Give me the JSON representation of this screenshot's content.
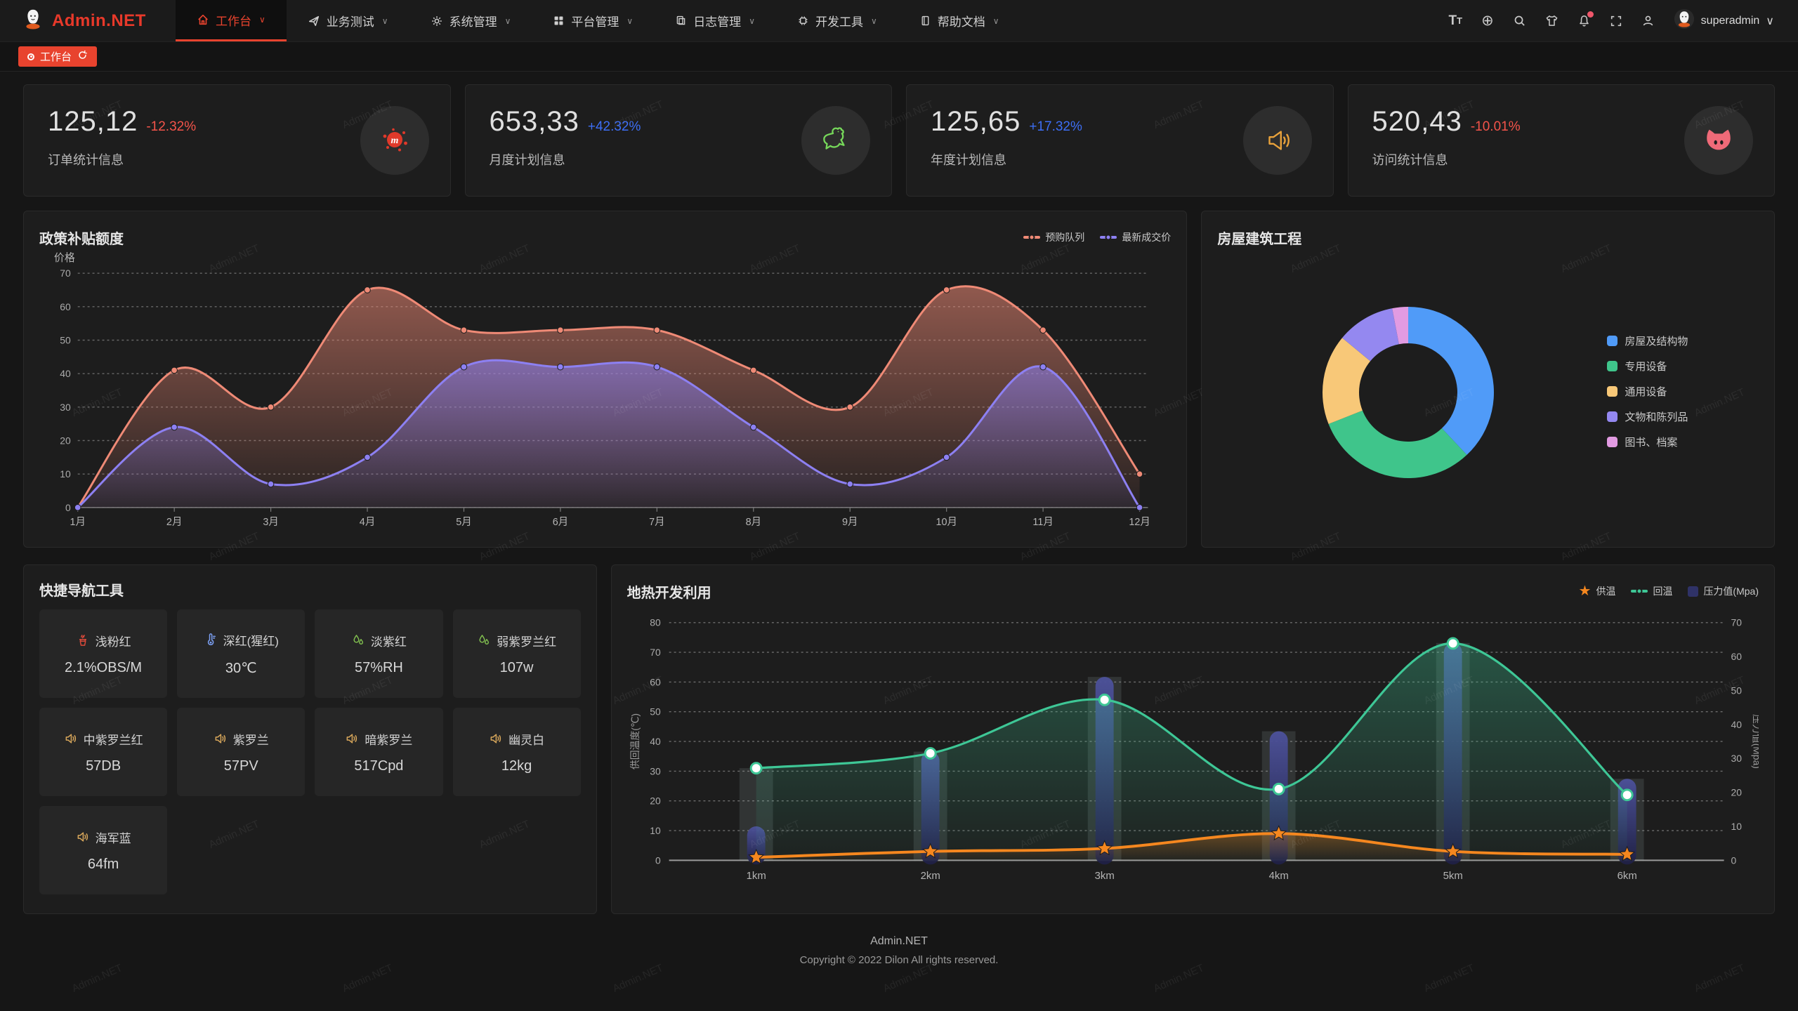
{
  "app": {
    "brand": "Admin.NET",
    "footer_line1": "Admin.NET",
    "footer_line2": "Copyright © 2022 Dilon All rights reserved."
  },
  "navbar": {
    "menu": [
      {
        "label": "工作台",
        "icon": "home-icon",
        "active": true
      },
      {
        "label": "业务测试",
        "icon": "send-icon",
        "active": false
      },
      {
        "label": "系统管理",
        "icon": "gear-icon",
        "active": false
      },
      {
        "label": "平台管理",
        "icon": "grid-icon",
        "active": false
      },
      {
        "label": "日志管理",
        "icon": "copy-icon",
        "active": false
      },
      {
        "label": "开发工具",
        "icon": "chip-icon",
        "active": false
      },
      {
        "label": "帮助文档",
        "icon": "book-icon",
        "active": false
      }
    ],
    "right_icons": [
      "font-size-icon",
      "language-icon",
      "search-icon",
      "theme-icon",
      "notification-icon",
      "fullscreen-icon",
      "profile-icon"
    ],
    "username": "superadmin"
  },
  "tabbar": {
    "active_tab": "工作台"
  },
  "stats": [
    {
      "value": "125,12",
      "delta": "-12.32%",
      "delta_color": "#f4544a",
      "label": "订单统计信息",
      "icon": "splatter-icon",
      "icon_color": "#e0392a"
    },
    {
      "value": "653,33",
      "delta": "+42.32%",
      "delta_color": "#3d6ef5",
      "label": "月度计划信息",
      "icon": "chicken-icon",
      "icon_color": "#76d85a"
    },
    {
      "value": "125,65",
      "delta": "+17.32%",
      "delta_color": "#3d6ef5",
      "label": "年度计划信息",
      "icon": "horn-icon",
      "icon_color": "#e9a23b"
    },
    {
      "value": "520,43",
      "delta": "-10.01%",
      "delta_color": "#f4544a",
      "label": "访问统计信息",
      "icon": "pig-icon",
      "icon_color": "#ef6a78"
    }
  ],
  "chart_data": [
    {
      "type": "area",
      "title": "政策补贴额度",
      "ylabel": "价格",
      "categories": [
        "1月",
        "2月",
        "3月",
        "4月",
        "5月",
        "6月",
        "7月",
        "8月",
        "9月",
        "10月",
        "11月",
        "12月"
      ],
      "ylim": [
        0,
        70
      ],
      "ytick_step": 10,
      "grid": "dashed",
      "legend_position": "top-right",
      "series": [
        {
          "name": "预购队列",
          "color": "#ef8a76",
          "values": [
            0,
            41,
            30,
            65,
            53,
            53,
            53,
            41,
            30,
            65,
            53,
            10
          ]
        },
        {
          "name": "最新成交价",
          "color": "#8d80f2",
          "values": [
            0,
            24,
            7,
            15,
            42,
            42,
            42,
            24,
            7,
            15,
            42,
            0
          ]
        }
      ]
    },
    {
      "type": "pie",
      "title": "房屋建筑工程",
      "donut": true,
      "legend_position": "right",
      "slices": [
        {
          "label": "房屋及结构物",
          "value": 38,
          "color": "#509bf8"
        },
        {
          "label": "专用设备",
          "value": 31,
          "color": "#3fc58b"
        },
        {
          "label": "通用设备",
          "value": 17,
          "color": "#f8c878"
        },
        {
          "label": "文物和陈列品",
          "value": 11,
          "color": "#9488f0"
        },
        {
          "label": "图书、档案",
          "value": 3,
          "color": "#e29be2"
        }
      ]
    },
    {
      "type": "line-bar",
      "title": "地热开发利用",
      "categories": [
        "1km",
        "2km",
        "3km",
        "4km",
        "5km",
        "6km"
      ],
      "left_axis": {
        "label": "供回温度(℃)",
        "range": [
          0,
          80
        ],
        "tick_step": 10
      },
      "right_axis": {
        "label": "压力值(Mpa)",
        "range": [
          0,
          70
        ],
        "tick_step": 10
      },
      "grid": "dashed",
      "legend_position": "top-right",
      "series": [
        {
          "name": "供温",
          "type": "line",
          "marker": "star",
          "axis": "left",
          "color": "#f5871f",
          "values": [
            1,
            3,
            4,
            9,
            3,
            2
          ]
        },
        {
          "name": "回温",
          "type": "line",
          "marker": "circle",
          "axis": "left",
          "color": "#3ec796",
          "values": [
            31,
            36,
            54,
            24,
            73,
            22
          ]
        },
        {
          "name": "压力值(Mpa)",
          "type": "bar",
          "axis": "right",
          "color": "#2f3267",
          "values": [
            10,
            32,
            54,
            38,
            64,
            24
          ]
        }
      ]
    }
  ],
  "quick_nav": {
    "title": "快捷导航工具",
    "items": [
      {
        "name": "浅粉红",
        "value": "2.1%OBS/M",
        "icon": "brazier-icon",
        "icon_color": "#d8493a"
      },
      {
        "name": "深红(猩红)",
        "value": "30℃",
        "icon": "thermometer-icon",
        "icon_color": "#7b9ff2"
      },
      {
        "name": "淡紫红",
        "value": "57%RH",
        "icon": "drops-icon",
        "icon_color": "#83c250"
      },
      {
        "name": "弱紫罗兰红",
        "value": "107w",
        "icon": "drops-icon",
        "icon_color": "#83c250"
      },
      {
        "name": "中紫罗兰红",
        "value": "57DB",
        "icon": "speaker-icon",
        "icon_color": "#d8a75b"
      },
      {
        "name": "紫罗兰",
        "value": "57PV",
        "icon": "speaker-icon",
        "icon_color": "#d8a75b"
      },
      {
        "name": "暗紫罗兰",
        "value": "517Cpd",
        "icon": "speaker-icon",
        "icon_color": "#d8a75b"
      },
      {
        "name": "幽灵白",
        "value": "12kg",
        "icon": "speaker-icon",
        "icon_color": "#d8a75b"
      },
      {
        "name": "海军蓝",
        "value": "64fm",
        "icon": "speaker-icon",
        "icon_color": "#d8a75b"
      }
    ]
  },
  "watermark": {
    "text": "Admin.NET"
  }
}
